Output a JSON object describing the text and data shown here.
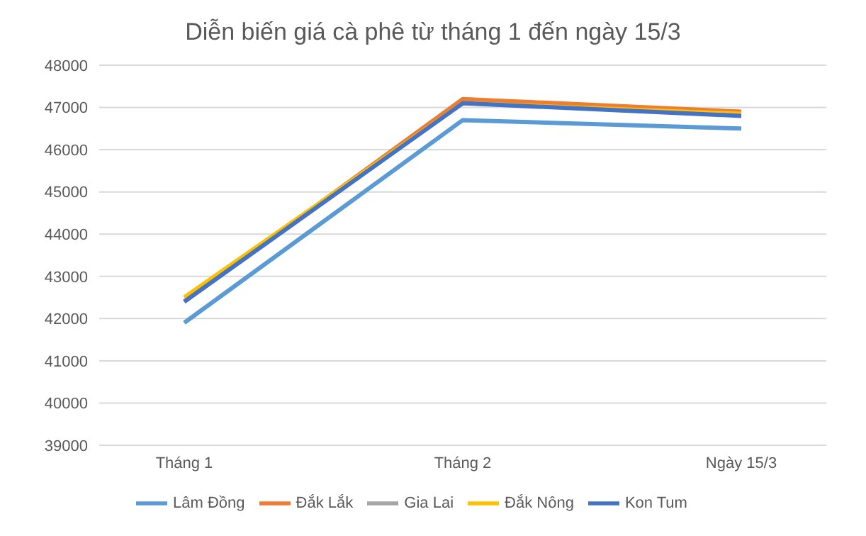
{
  "chart_data": {
    "type": "line",
    "title": "Diễn biến giá cà phê từ tháng 1 đến ngày 15/3",
    "categories": [
      "Tháng 1",
      "Tháng 2",
      "Ngày 15/3"
    ],
    "series": [
      {
        "name": "Lâm Đồng",
        "color": "#5b9bd5",
        "values": [
          41900,
          46700,
          46500
        ]
      },
      {
        "name": "Đắk Lắk",
        "color": "#ed7d31",
        "values": [
          42400,
          47200,
          46900
        ]
      },
      {
        "name": "Gia Lai",
        "color": "#a5a5a5",
        "values": [
          null,
          null,
          null
        ]
      },
      {
        "name": "Đắk Nông",
        "color": "#ffc000",
        "values": [
          42500,
          47100,
          46850
        ]
      },
      {
        "name": "Kon Tum",
        "color": "#4472c4",
        "values": [
          42400,
          47100,
          46800
        ]
      }
    ],
    "ylim": [
      39000,
      48000
    ],
    "yticks": [
      39000,
      40000,
      41000,
      42000,
      43000,
      44000,
      45000,
      46000,
      47000,
      48000
    ],
    "grid": "y",
    "legend": "bottom",
    "marker": "none",
    "line_style": "solid"
  }
}
